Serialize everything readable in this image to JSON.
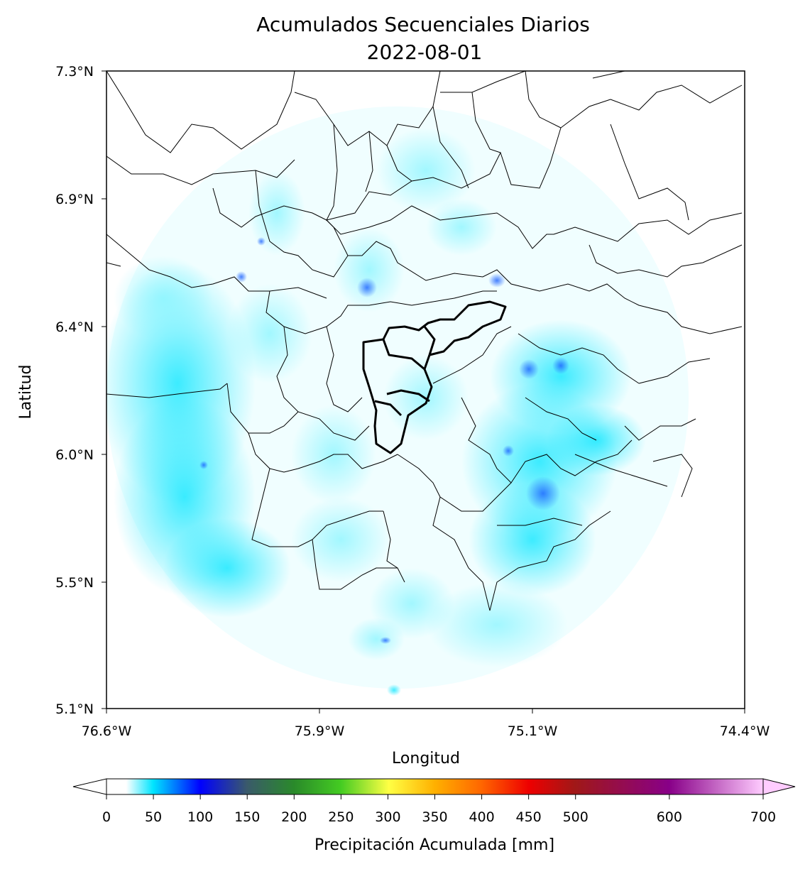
{
  "title": "Acumulados Secuenciales Diarios",
  "subtitle": "2022-08-01",
  "axes": {
    "xlabel": "Longitud",
    "ylabel": "Latitud",
    "xticks": [
      "76.6°W",
      "75.9°W",
      "75.1°W",
      "74.4°W"
    ],
    "yticks": [
      "7.3°N",
      "6.9°N",
      "6.4°N",
      "6.0°N",
      "5.5°N",
      "5.1°N"
    ],
    "xlim_deg_west": [
      76.6,
      74.4
    ],
    "ylim_deg_north": [
      5.1,
      7.3
    ]
  },
  "colorbar": {
    "label": "Precipitación Acumulada [mm]",
    "ticks": [
      "0",
      "50",
      "100",
      "150",
      "200",
      "250",
      "300",
      "350",
      "400",
      "450",
      "500",
      "600",
      "700"
    ],
    "tick_values": [
      0,
      50,
      100,
      150,
      200,
      250,
      300,
      350,
      400,
      450,
      500,
      600,
      700
    ],
    "extend": "both",
    "colors": [
      "#ffffff",
      "#00e5ff",
      "#0000ff",
      "#3a5a6a",
      "#2a8a2a",
      "#44cc22",
      "#ffff44",
      "#ffb000",
      "#ff6600",
      "#ee0000",
      "#a01818",
      "#880088",
      "#ffccff"
    ]
  },
  "map": {
    "field": "radar accumulated precipitation (mostly 0–80 mm, cyan/blue tones)",
    "radar_coverage": "circular",
    "boundaries": "municipal borders (thin), highlighted metropolitan area (thick)"
  }
}
